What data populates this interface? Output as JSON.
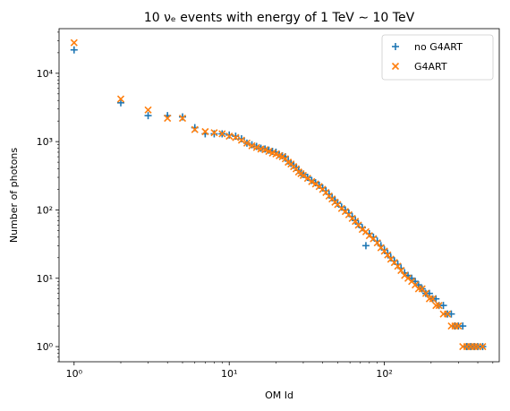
{
  "chart_data": {
    "type": "scatter",
    "title": "10 νₑ events with energy of 1 TeV ∼ 10 TeV",
    "xlabel": "OM Id",
    "ylabel": "Number of photons",
    "xscale": "log",
    "yscale": "log",
    "xlim": [
      0.8,
      550
    ],
    "ylim": [
      0.6,
      45000
    ],
    "xticks": [
      {
        "value": 1,
        "label": "10⁰"
      },
      {
        "value": 10,
        "label": "10¹"
      },
      {
        "value": 100,
        "label": "10²"
      }
    ],
    "yticks": [
      {
        "value": 1,
        "label": "10⁰"
      },
      {
        "value": 10,
        "label": "10¹"
      },
      {
        "value": 100,
        "label": "10²"
      },
      {
        "value": 1000,
        "label": "10³"
      },
      {
        "value": 10000,
        "label": "10⁴"
      }
    ],
    "grid": false,
    "legend": "top-right",
    "series": [
      {
        "name": "no G4ART",
        "marker": "plus",
        "color": "#1f77b4",
        "points": [
          [
            1,
            22000
          ],
          [
            2,
            3700
          ],
          [
            3,
            2400
          ],
          [
            4,
            2400
          ],
          [
            5,
            2300
          ],
          [
            6,
            1600
          ],
          [
            7,
            1300
          ],
          [
            8,
            1300
          ],
          [
            9,
            1300
          ],
          [
            10,
            1250
          ],
          [
            11,
            1200
          ],
          [
            12,
            1100
          ],
          [
            13,
            950
          ],
          [
            14,
            900
          ],
          [
            15,
            850
          ],
          [
            16,
            800
          ],
          [
            17,
            780
          ],
          [
            18,
            750
          ],
          [
            19,
            720
          ],
          [
            20,
            700
          ],
          [
            21,
            650
          ],
          [
            22,
            620
          ],
          [
            23,
            600
          ],
          [
            24,
            520
          ],
          [
            25,
            480
          ],
          [
            26,
            450
          ],
          [
            27,
            420
          ],
          [
            28,
            380
          ],
          [
            29,
            350
          ],
          [
            30,
            330
          ],
          [
            32,
            300
          ],
          [
            34,
            270
          ],
          [
            36,
            250
          ],
          [
            38,
            230
          ],
          [
            40,
            210
          ],
          [
            42,
            190
          ],
          [
            44,
            170
          ],
          [
            46,
            150
          ],
          [
            48,
            140
          ],
          [
            50,
            125
          ],
          [
            53,
            110
          ],
          [
            56,
            100
          ],
          [
            59,
            90
          ],
          [
            62,
            80
          ],
          [
            65,
            70
          ],
          [
            68,
            62
          ],
          [
            72,
            55
          ],
          [
            76,
            30
          ],
          [
            80,
            45
          ],
          [
            85,
            40
          ],
          [
            90,
            35
          ],
          [
            95,
            30
          ],
          [
            100,
            26
          ],
          [
            105,
            23
          ],
          [
            110,
            20
          ],
          [
            116,
            18
          ],
          [
            122,
            16
          ],
          [
            128,
            14
          ],
          [
            135,
            12
          ],
          [
            142,
            11
          ],
          [
            150,
            10
          ],
          [
            158,
            9
          ],
          [
            166,
            8
          ],
          [
            175,
            7
          ],
          [
            185,
            6
          ],
          [
            195,
            6
          ],
          [
            205,
            5
          ],
          [
            215,
            5
          ],
          [
            225,
            4
          ],
          [
            240,
            4
          ],
          [
            255,
            3
          ],
          [
            270,
            3
          ],
          [
            285,
            2
          ],
          [
            300,
            2
          ],
          [
            320,
            2
          ],
          [
            340,
            1
          ],
          [
            360,
            1
          ],
          [
            380,
            1
          ],
          [
            400,
            1
          ],
          [
            430,
            1
          ]
        ]
      },
      {
        "name": "G4ART",
        "marker": "x",
        "color": "#ff7f0e",
        "points": [
          [
            1,
            28000
          ],
          [
            2,
            4200
          ],
          [
            3,
            2900
          ],
          [
            4,
            2200
          ],
          [
            5,
            2200
          ],
          [
            6,
            1500
          ],
          [
            7,
            1400
          ],
          [
            8,
            1350
          ],
          [
            9,
            1300
          ],
          [
            10,
            1200
          ],
          [
            11,
            1150
          ],
          [
            12,
            1050
          ],
          [
            13,
            950
          ],
          [
            14,
            870
          ],
          [
            15,
            820
          ],
          [
            16,
            780
          ],
          [
            17,
            760
          ],
          [
            18,
            720
          ],
          [
            19,
            680
          ],
          [
            20,
            660
          ],
          [
            21,
            620
          ],
          [
            22,
            600
          ],
          [
            23,
            560
          ],
          [
            24,
            500
          ],
          [
            25,
            470
          ],
          [
            26,
            430
          ],
          [
            27,
            400
          ],
          [
            28,
            360
          ],
          [
            29,
            340
          ],
          [
            30,
            320
          ],
          [
            32,
            290
          ],
          [
            34,
            260
          ],
          [
            36,
            240
          ],
          [
            38,
            220
          ],
          [
            40,
            200
          ],
          [
            42,
            180
          ],
          [
            44,
            160
          ],
          [
            46,
            145
          ],
          [
            48,
            130
          ],
          [
            50,
            120
          ],
          [
            53,
            105
          ],
          [
            56,
            95
          ],
          [
            59,
            85
          ],
          [
            62,
            75
          ],
          [
            65,
            68
          ],
          [
            68,
            60
          ],
          [
            72,
            52
          ],
          [
            76,
            48
          ],
          [
            80,
            42
          ],
          [
            85,
            38
          ],
          [
            90,
            33
          ],
          [
            95,
            28
          ],
          [
            100,
            25
          ],
          [
            105,
            22
          ],
          [
            110,
            19
          ],
          [
            116,
            17
          ],
          [
            122,
            15
          ],
          [
            128,
            13
          ],
          [
            135,
            11
          ],
          [
            142,
            10
          ],
          [
            150,
            9
          ],
          [
            158,
            8
          ],
          [
            166,
            7
          ],
          [
            175,
            7
          ],
          [
            185,
            6
          ],
          [
            195,
            5
          ],
          [
            205,
            5
          ],
          [
            215,
            4
          ],
          [
            225,
            4
          ],
          [
            240,
            3
          ],
          [
            255,
            3
          ],
          [
            270,
            2
          ],
          [
            285,
            2
          ],
          [
            300,
            2
          ],
          [
            320,
            1
          ],
          [
            340,
            1
          ],
          [
            360,
            1
          ],
          [
            380,
            1
          ],
          [
            400,
            1
          ],
          [
            430,
            1
          ]
        ]
      }
    ]
  }
}
